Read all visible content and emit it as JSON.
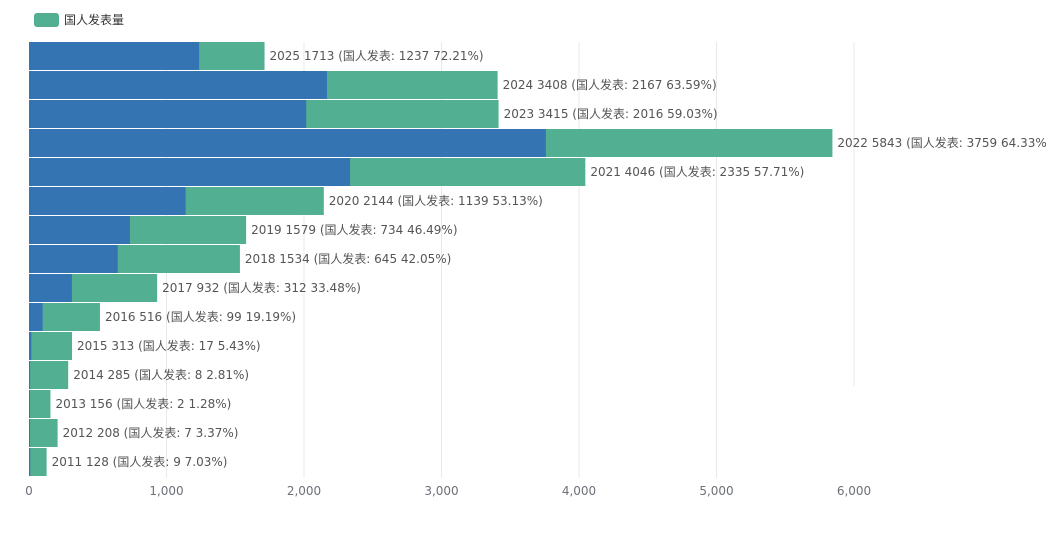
{
  "chart_data": {
    "type": "bar",
    "orientation": "horizontal",
    "legend": [
      {
        "name": "国人发表量",
        "color": "#52af91"
      }
    ],
    "legend_placement": "top-left",
    "colors": {
      "total": "#52af91",
      "overlay": "#3574b3",
      "grid": "#e8e8e8",
      "axis_text": "#6e7079"
    },
    "xlim": [
      0,
      6000
    ],
    "x_ticks": [
      "0",
      "1,000",
      "2,000",
      "3,000",
      "4,000",
      "5,000",
      "6,000"
    ],
    "grid": true,
    "rows": [
      {
        "year": "2025",
        "total": 1713,
        "domestic": 1237,
        "pct": "72.21%",
        "label": "2025 1713 (国人发表: 1237 72.21%)"
      },
      {
        "year": "2024",
        "total": 3408,
        "domestic": 2167,
        "pct": "63.59%",
        "label": "2024 3408 (国人发表: 2167 63.59%)"
      },
      {
        "year": "2023",
        "total": 3415,
        "domestic": 2016,
        "pct": "59.03%",
        "label": "2023 3415 (国人发表: 2016 59.03%)"
      },
      {
        "year": "2022",
        "total": 5843,
        "domestic": 3759,
        "pct": "64.33%",
        "label": "2022 5843 (国人发表: 3759 64.33%)"
      },
      {
        "year": "2021",
        "total": 4046,
        "domestic": 2335,
        "pct": "57.71%",
        "label": "2021 4046 (国人发表: 2335 57.71%)"
      },
      {
        "year": "2020",
        "total": 2144,
        "domestic": 1139,
        "pct": "53.13%",
        "label": "2020 2144 (国人发表: 1139 53.13%)"
      },
      {
        "year": "2019",
        "total": 1579,
        "domestic": 734,
        "pct": "46.49%",
        "label": "2019 1579 (国人发表: 734 46.49%)"
      },
      {
        "year": "2018",
        "total": 1534,
        "domestic": 645,
        "pct": "42.05%",
        "label": "2018 1534 (国人发表: 645 42.05%)"
      },
      {
        "year": "2017",
        "total": 932,
        "domestic": 312,
        "pct": "33.48%",
        "label": "2017 932 (国人发表: 312 33.48%)"
      },
      {
        "year": "2016",
        "total": 516,
        "domestic": 99,
        "pct": "19.19%",
        "label": "2016 516 (国人发表: 99 19.19%)"
      },
      {
        "year": "2015",
        "total": 313,
        "domestic": 17,
        "pct": "5.43%",
        "label": "2015 313 (国人发表: 17 5.43%)"
      },
      {
        "year": "2014",
        "total": 285,
        "domestic": 8,
        "pct": "2.81%",
        "label": "2014 285 (国人发表: 8 2.81%)"
      },
      {
        "year": "2013",
        "total": 156,
        "domestic": 2,
        "pct": "1.28%",
        "label": "2013 156 (国人发表: 2 1.28%)"
      },
      {
        "year": "2012",
        "total": 208,
        "domestic": 7,
        "pct": "3.37%",
        "label": "2012 208 (国人发表: 7 3.37%)"
      },
      {
        "year": "2011",
        "total": 128,
        "domestic": 9,
        "pct": "7.03%",
        "label": "2011 128 (国人发表: 9 7.03%)"
      }
    ]
  }
}
